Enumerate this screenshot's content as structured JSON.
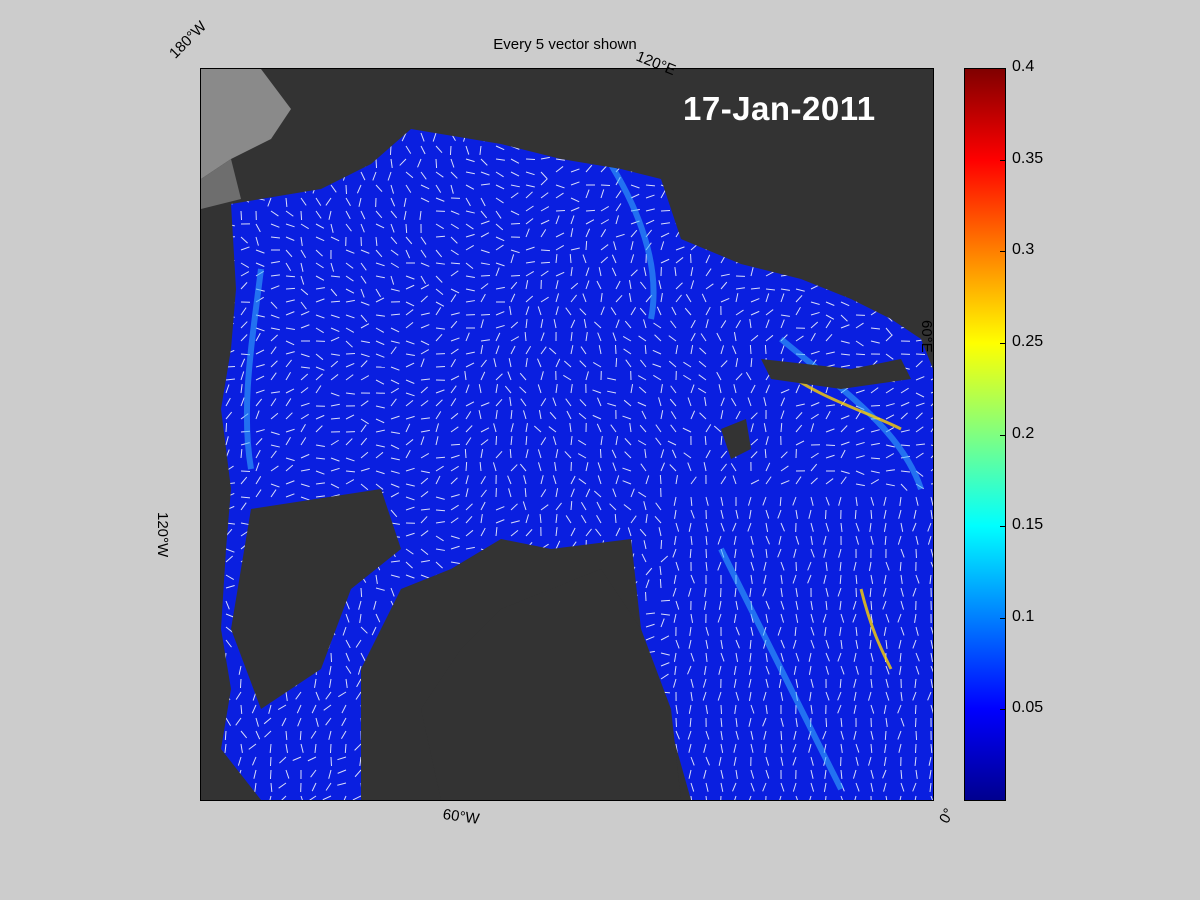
{
  "title": "Every 5 vector shown",
  "date": "17-Jan-2011",
  "coordinate_labels": {
    "lon_180w": "180°W",
    "lon_120e": "120°E",
    "lon_60e": "60°E",
    "lon_120w": "120°W",
    "lon_60w": "60°W",
    "lon_0": "0°"
  },
  "colorbar": {
    "min": 0,
    "max": 0.4,
    "colormap": "jet",
    "tick_labels": [
      "0.4",
      "0.35",
      "0.3",
      "0.25",
      "0.2",
      "0.15",
      "0.1",
      "0.05"
    ],
    "tick_values": [
      0.4,
      0.35,
      0.3,
      0.25,
      0.2,
      0.15,
      0.1,
      0.05
    ]
  },
  "colors": {
    "background": "#cccccc",
    "land": "#333333",
    "ocean_low": "#0a1fe0",
    "vectors": "#ffffff",
    "date_text": "#ffffff"
  }
}
